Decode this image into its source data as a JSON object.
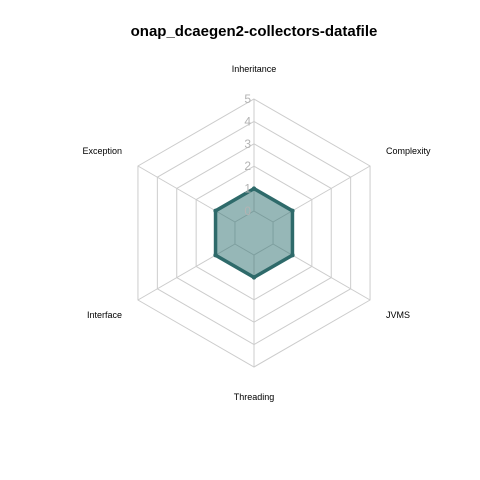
{
  "chart_data": {
    "type": "radar",
    "title": "onap_dcaegen2-collectors-datafile",
    "axes": [
      "Inheritance",
      "Complexity",
      "JVMS",
      "Threading",
      "Interface",
      "Exception"
    ],
    "ticks": [
      "0",
      "1",
      "2",
      "3",
      "4",
      "5"
    ],
    "rlim": [
      0,
      5
    ],
    "series": [
      {
        "values": [
          1,
          1,
          1,
          1,
          1,
          1
        ]
      }
    ],
    "grid": true
  },
  "colors": {
    "grid": "#cccccc",
    "tick_text": "#b3b3b3",
    "series_fill": "#2e7070",
    "series_stroke": "#2e6a6a"
  }
}
